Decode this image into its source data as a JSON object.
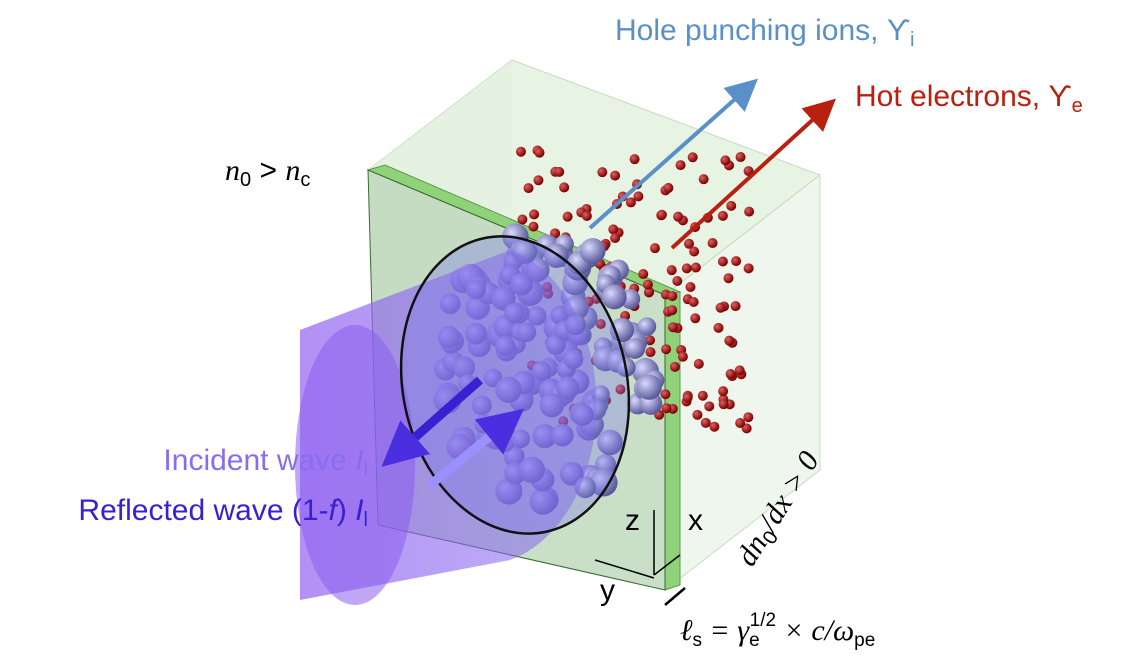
{
  "labels": {
    "ions": {
      "text": "Hole punching ions, ϒ",
      "sub": "i"
    },
    "electrons": {
      "text": "Hot electrons, ϒ",
      "sub": "e"
    },
    "density": {
      "n": "n",
      "sub0": "0",
      "op": " > ",
      "n2": "n",
      "subc": "c"
    },
    "incident": {
      "text": "Incident wave ",
      "sym": "I",
      "sub": "l"
    },
    "reflected": {
      "text": "Reflected wave (1-",
      "f": "f",
      "close": ") ",
      "sym": "I",
      "sub": "l"
    },
    "gradient": {
      "text": "dn",
      "sub": "0",
      "rest": "/dx > 0"
    },
    "axes": {
      "z": "z",
      "x": "x",
      "y": "y"
    },
    "skin": {
      "lhs": "ℓ",
      "lsub": "s",
      "eq": " = γ",
      "gsub": "e",
      "gsup": "1/2",
      "rest": " × c/ω",
      "wsub": "pe"
    }
  }
}
